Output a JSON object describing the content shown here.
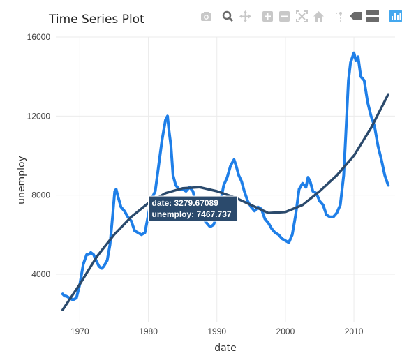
{
  "chart_data": {
    "type": "line",
    "title": "Time Series Plot",
    "xlabel": "date",
    "ylabel": "unemploy",
    "xlim": [
      1966.5,
      2016
    ],
    "ylim": [
      1600,
      16000
    ],
    "x_ticks": [
      1970,
      1980,
      1990,
      2000,
      2010
    ],
    "y_ticks": [
      4000,
      8000,
      12000,
      16000
    ],
    "x_tick_labels": [
      "1970",
      "1980",
      "1990",
      "2000",
      "2010"
    ],
    "y_tick_labels": [
      "4000",
      "8000",
      "12000",
      "16000"
    ],
    "grid": true,
    "colors": {
      "raw": "#1f7fe8",
      "trend": "#2b4a6c",
      "tooltip_bg": "#2b4a6c"
    },
    "series": [
      {
        "x": [
          1967.5,
          1967.8,
          1968.0,
          1968.5,
          1969.0,
          1969.5,
          1970.0,
          1970.5,
          1971.0,
          1971.3,
          1971.6,
          1972.0,
          1972.5,
          1972.8,
          1973.2,
          1973.5,
          1974.0,
          1974.4,
          1974.8,
          1975.1,
          1975.3,
          1975.6,
          1976.0,
          1976.5,
          1977.0,
          1977.5,
          1978.0,
          1978.5,
          1979.0,
          1979.5,
          1980.0,
          1980.3,
          1980.6,
          1981.0,
          1981.5,
          1982.0,
          1982.5,
          1982.8,
          1983.0,
          1983.3,
          1983.6,
          1984.0,
          1984.5,
          1985.0,
          1985.5,
          1986.0,
          1986.5,
          1987.0,
          1987.5,
          1988.0,
          1988.5,
          1989.0,
          1989.5,
          1990.0,
          1990.5,
          1991.0,
          1991.5,
          1992.0,
          1992.5,
          1992.8,
          1993.2,
          1993.6,
          1994.0,
          1994.5,
          1995.0,
          1995.5,
          1996.0,
          1996.5,
          1997.0,
          1997.5,
          1998.0,
          1998.5,
          1999.0,
          1999.5,
          2000.0,
          2000.5,
          2001.0,
          2001.5,
          2002.0,
          2002.5,
          2003.0,
          2003.3,
          2003.6,
          2004.0,
          2004.5,
          2005.0,
          2005.5,
          2006.0,
          2006.5,
          2007.0,
          2007.5,
          2008.0,
          2008.5,
          2008.8,
          2009.2,
          2009.5,
          2009.8,
          2010.0,
          2010.3,
          2010.6,
          2011.0,
          2011.5,
          2012.0,
          2012.5,
          2013.0,
          2013.5,
          2014.0,
          2014.5,
          2015.0
        ],
        "y": [
          3000,
          2900,
          2900,
          2800,
          2700,
          2800,
          3500,
          4500,
          5000,
          5000,
          5100,
          5000,
          4600,
          4400,
          4300,
          4400,
          4700,
          5500,
          7000,
          8200,
          8300,
          7900,
          7400,
          7200,
          6900,
          6700,
          6200,
          6100,
          6000,
          6100,
          7000,
          7600,
          7900,
          8200,
          9500,
          10800,
          11800,
          12000,
          11300,
          10500,
          9000,
          8500,
          8300,
          8300,
          8200,
          8400,
          8200,
          7500,
          7200,
          6800,
          6600,
          6400,
          6500,
          6900,
          7600,
          8500,
          8900,
          9500,
          9800,
          9500,
          9000,
          8700,
          8200,
          7700,
          7400,
          7200,
          7400,
          7300,
          6800,
          6600,
          6300,
          6100,
          6000,
          5800,
          5700,
          5600,
          6000,
          7000,
          8300,
          8600,
          8400,
          8900,
          8700,
          8200,
          8100,
          7700,
          7500,
          7000,
          6900,
          6900,
          7100,
          7500,
          9000,
          11000,
          13800,
          14700,
          15000,
          15200,
          14800,
          15000,
          14000,
          13800,
          12700,
          12000,
          11500,
          10500,
          9800,
          9000,
          8500
        ],
        "mode": "lines"
      },
      {
        "x": [
          1967.5,
          1970,
          1972.5,
          1975,
          1977.5,
          1980,
          1982.5,
          1985,
          1987.5,
          1990,
          1992.5,
          1995,
          1997.5,
          2000,
          2002.5,
          2005,
          2007.5,
          2010,
          2012.5,
          2015
        ],
        "y": [
          2200,
          3500,
          4900,
          6000,
          6900,
          7600,
          8100,
          8350,
          8400,
          8200,
          7900,
          7500,
          7100,
          7150,
          7500,
          8200,
          9000,
          10000,
          11400,
          13100
        ],
        "mode": "lines"
      }
    ],
    "annotations": [
      {
        "type": "hover-tooltip",
        "lines": [
          "date:  3279.67089",
          "unemploy:  7467.737"
        ],
        "x": 1980.2,
        "y": 7950
      }
    ]
  },
  "modebar": {
    "buttons": [
      {
        "icon": "camera-icon",
        "label": "Download plot as a png"
      },
      {
        "icon": "zoom-icon",
        "label": "Zoom"
      },
      {
        "icon": "pan-icon",
        "label": "Pan"
      },
      {
        "icon": "zoom-in-icon",
        "label": "Zoom in"
      },
      {
        "icon": "zoom-out-icon",
        "label": "Zoom out"
      },
      {
        "icon": "autoscale-icon",
        "label": "Autoscale"
      },
      {
        "icon": "home-icon",
        "label": "Reset axes"
      },
      {
        "icon": "spike-lines-icon",
        "label": "Toggle Spike Lines"
      },
      {
        "icon": "hover-closest-icon",
        "label": "Show closest data on hover"
      },
      {
        "icon": "hover-compare-icon",
        "label": "Compare data on hover"
      },
      {
        "icon": "plotly-logo-icon",
        "label": "Produced with Plotly"
      }
    ]
  }
}
